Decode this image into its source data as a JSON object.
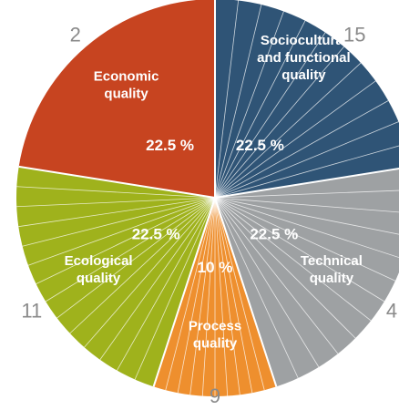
{
  "chart_data": {
    "type": "pie",
    "title": "",
    "slices": [
      {
        "name": "Sociocultural and functional quality",
        "label_lines": [
          "Sociocultural",
          "and functional",
          "quality"
        ],
        "value": 22.5,
        "value_label": "22.5 %",
        "color": "#2f5476",
        "outer_number": "15"
      },
      {
        "name": "Technical quality",
        "label_lines": [
          "Technical",
          "quality"
        ],
        "value": 22.5,
        "value_label": "22.5 %",
        "color": "#9ea1a3",
        "outer_number": "4"
      },
      {
        "name": "Process quality",
        "label_lines": [
          "Process",
          "quality"
        ],
        "value": 10,
        "value_label": "10 %",
        "color": "#ee8f2e",
        "outer_number": "9"
      },
      {
        "name": "Ecological quality",
        "label_lines": [
          "Ecological",
          "quality"
        ],
        "value": 22.5,
        "value_label": "22.5 %",
        "color": "#9fb21c",
        "outer_number": "11"
      },
      {
        "name": "Economic quality",
        "label_lines": [
          "Economic",
          "quality"
        ],
        "value": 22.5,
        "value_label": "22.5 %",
        "color": "#c74420",
        "outer_number": "2"
      }
    ],
    "start": "12 o'clock",
    "direction": "clockwise",
    "legend": "none"
  }
}
